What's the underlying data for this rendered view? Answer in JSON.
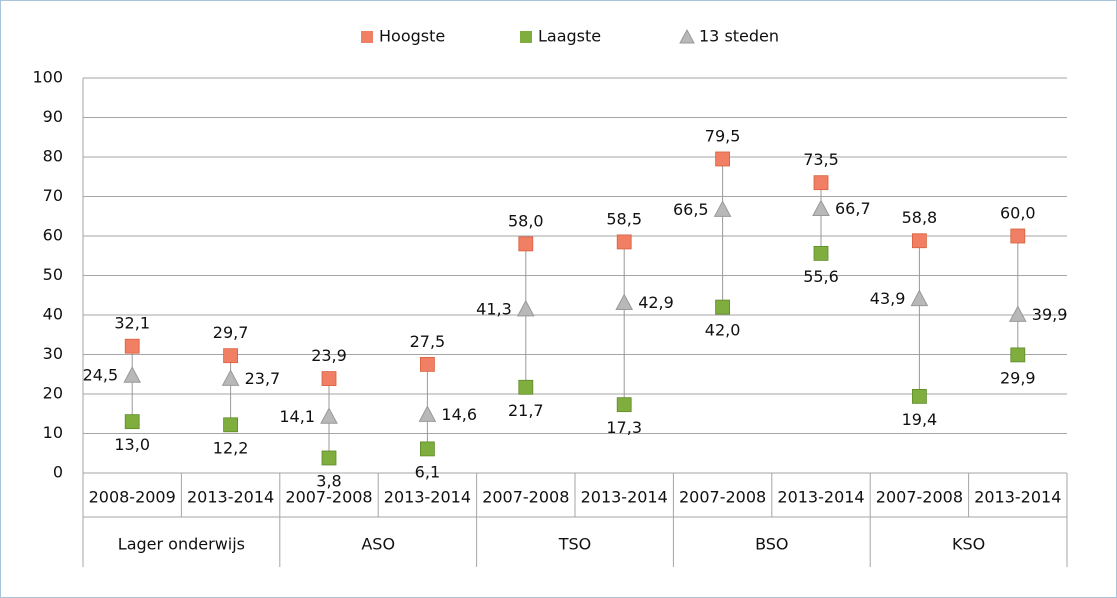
{
  "chart_data": {
    "type": "dotrange",
    "groups": [
      {
        "name": "Lager onderwijs",
        "categories": [
          "2008-2009",
          "2013-2014"
        ]
      },
      {
        "name": "ASO",
        "categories": [
          "2007-2008",
          "2013-2014"
        ]
      },
      {
        "name": "TSO",
        "categories": [
          "2007-2008",
          "2013-2014"
        ]
      },
      {
        "name": "BSO",
        "categories": [
          "2007-2008",
          "2013-2014"
        ]
      },
      {
        "name": "KSO",
        "categories": [
          "2007-2008",
          "2013-2014"
        ]
      }
    ],
    "series": [
      {
        "name": "Hoogste",
        "color": "#f07f64",
        "marker": "square",
        "values": [
          32.1,
          29.7,
          23.9,
          27.5,
          58.0,
          58.5,
          79.5,
          73.5,
          58.8,
          60.0
        ],
        "value_labels": [
          "32,1",
          "29,7",
          "23,9",
          "27,5",
          "58,0",
          "58,5",
          "79,5",
          "73,5",
          "58,8",
          "60,0"
        ]
      },
      {
        "name": "Laagste",
        "color": "#7fae3f",
        "marker": "square",
        "values": [
          13.0,
          12.2,
          3.8,
          6.1,
          21.7,
          17.3,
          42.0,
          55.6,
          19.4,
          29.9
        ],
        "value_labels": [
          "13,0",
          "12,2",
          "3,8",
          "6,1",
          "21,7",
          "17,3",
          "42,0",
          "55,6",
          "19,4",
          "29,9"
        ]
      },
      {
        "name": "13 steden",
        "color": "#b8b8b8",
        "marker": "triangle",
        "values": [
          24.5,
          23.7,
          14.1,
          14.6,
          41.3,
          42.9,
          66.5,
          66.7,
          43.9,
          39.9
        ],
        "value_labels": [
          "24,5",
          "23,7",
          "14,1",
          "14,6",
          "41,3",
          "42,9",
          "66,5",
          "66,7",
          "43,9",
          "39,9"
        ]
      }
    ],
    "ylim": [
      0,
      100
    ],
    "yticks": [
      0,
      10,
      20,
      30,
      40,
      50,
      60,
      70,
      80,
      90,
      100
    ],
    "grid": true,
    "legend": "top"
  }
}
